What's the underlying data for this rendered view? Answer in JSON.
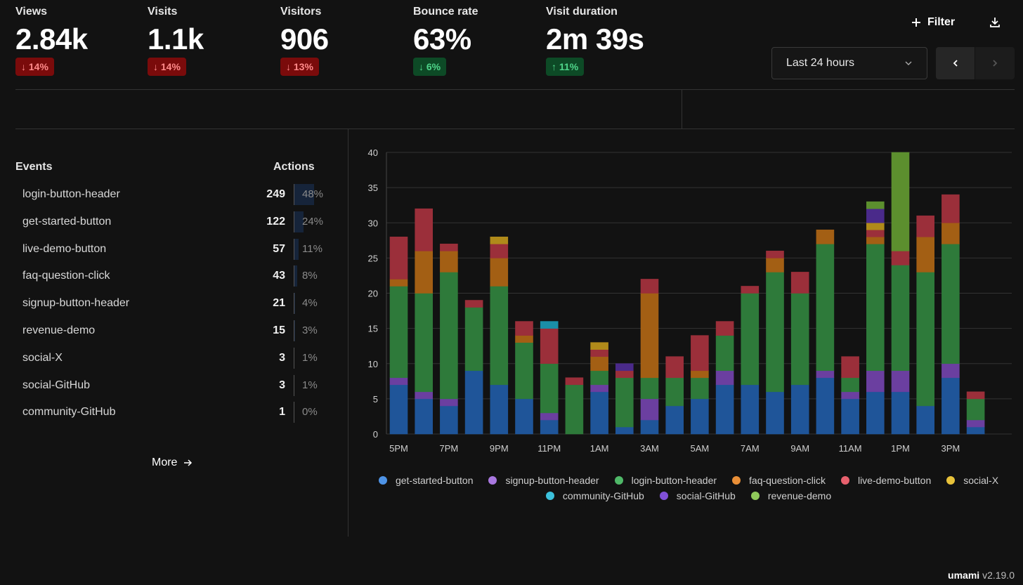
{
  "metrics": [
    {
      "label": "Views",
      "value": "2.84k",
      "change": "14%",
      "direction": "down"
    },
    {
      "label": "Visits",
      "value": "1.1k",
      "change": "14%",
      "direction": "down"
    },
    {
      "label": "Visitors",
      "value": "906",
      "change": "13%",
      "direction": "down"
    },
    {
      "label": "Bounce rate",
      "value": "63%",
      "change": "6%",
      "direction": "down-good"
    },
    {
      "label": "Visit duration",
      "value": "2m 39s",
      "change": "11%",
      "direction": "up"
    }
  ],
  "toolbar": {
    "filter_label": "Filter",
    "date_range": "Last 24 hours"
  },
  "events": {
    "header_events": "Events",
    "header_actions": "Actions",
    "rows": [
      {
        "name": "login-button-header",
        "count": "249",
        "pct": "48%",
        "share": 48
      },
      {
        "name": "get-started-button",
        "count": "122",
        "pct": "24%",
        "share": 24
      },
      {
        "name": "live-demo-button",
        "count": "57",
        "pct": "11%",
        "share": 11
      },
      {
        "name": "faq-question-click",
        "count": "43",
        "pct": "8%",
        "share": 8
      },
      {
        "name": "signup-button-header",
        "count": "21",
        "pct": "4%",
        "share": 4
      },
      {
        "name": "revenue-demo",
        "count": "15",
        "pct": "3%",
        "share": 3
      },
      {
        "name": "social-X",
        "count": "3",
        "pct": "1%",
        "share": 1
      },
      {
        "name": "social-GitHub",
        "count": "3",
        "pct": "1%",
        "share": 1
      },
      {
        "name": "community-GitHub",
        "count": "1",
        "pct": "0%",
        "share": 0
      }
    ],
    "more_label": "More"
  },
  "colors": {
    "get-started-button": "#1f5599",
    "signup-button-header": "#6b3fa0",
    "login-button-header": "#2e7a3a",
    "faq-question-click": "#a35f14",
    "live-demo-button": "#9b2f3a",
    "social-X": "#b08a1a",
    "community-GitHub": "#1a8fa8",
    "social-GitHub": "#4a2a8a",
    "revenue-demo": "#5c8f2e"
  },
  "legend_colors": {
    "get-started-button": "#4e93e6",
    "signup-button-header": "#a978e0",
    "login-button-header": "#4fb868",
    "faq-question-click": "#e98f37",
    "live-demo-button": "#e8606d",
    "social-X": "#e8c23a",
    "community-GitHub": "#3cc1dc",
    "social-GitHub": "#8150d8",
    "revenue-demo": "#8fc95a"
  },
  "chart_data": {
    "type": "bar",
    "stacked": true,
    "ylim": [
      0,
      40
    ],
    "yticks": [
      0,
      5,
      10,
      15,
      20,
      25,
      30,
      35,
      40
    ],
    "categories": [
      "5PM",
      "6PM",
      "7PM",
      "8PM",
      "9PM",
      "10PM",
      "11PM",
      "12AM",
      "1AM",
      "2AM",
      "3AM",
      "4AM",
      "5AM",
      "6AM",
      "7AM",
      "8AM",
      "9AM",
      "10AM",
      "11AM",
      "12PM",
      "1PM",
      "2PM",
      "3PM",
      "4PM"
    ],
    "tick_labels": [
      "5PM",
      "7PM",
      "9PM",
      "11PM",
      "1AM",
      "3AM",
      "5AM",
      "7AM",
      "9AM",
      "11AM",
      "1PM",
      "3PM"
    ],
    "series": [
      {
        "name": "get-started-button",
        "values": [
          7,
          5,
          4,
          9,
          7,
          5,
          2,
          0,
          6,
          1,
          2,
          4,
          5,
          7,
          7,
          6,
          7,
          8,
          5,
          6,
          6,
          4,
          8,
          1
        ]
      },
      {
        "name": "signup-button-header",
        "values": [
          1,
          1,
          1,
          0,
          0,
          0,
          1,
          0,
          1,
          0,
          3,
          0,
          0,
          2,
          0,
          0,
          0,
          1,
          1,
          3,
          3,
          0,
          2,
          1
        ]
      },
      {
        "name": "login-button-header",
        "values": [
          13,
          14,
          18,
          9,
          14,
          8,
          7,
          7,
          2,
          7,
          3,
          4,
          3,
          5,
          13,
          17,
          13,
          18,
          2,
          18,
          15,
          19,
          17,
          3
        ]
      },
      {
        "name": "faq-question-click",
        "values": [
          1,
          6,
          3,
          0,
          4,
          1,
          0,
          0,
          2,
          0,
          12,
          0,
          1,
          0,
          0,
          2,
          0,
          2,
          0,
          1,
          0,
          5,
          3,
          0
        ]
      },
      {
        "name": "live-demo-button",
        "values": [
          6,
          6,
          1,
          1,
          2,
          2,
          5,
          1,
          1,
          1,
          2,
          3,
          5,
          2,
          1,
          1,
          3,
          0,
          3,
          1,
          2,
          3,
          4,
          1
        ]
      },
      {
        "name": "social-X",
        "values": [
          0,
          0,
          0,
          0,
          1,
          0,
          0,
          0,
          1,
          0,
          0,
          0,
          0,
          0,
          0,
          0,
          0,
          0,
          0,
          1,
          0,
          0,
          0,
          0
        ]
      },
      {
        "name": "community-GitHub",
        "values": [
          0,
          0,
          0,
          0,
          0,
          0,
          1,
          0,
          0,
          0,
          0,
          0,
          0,
          0,
          0,
          0,
          0,
          0,
          0,
          0,
          0,
          0,
          0,
          0
        ]
      },
      {
        "name": "social-GitHub",
        "values": [
          0,
          0,
          0,
          0,
          0,
          0,
          0,
          0,
          0,
          1,
          0,
          0,
          0,
          0,
          0,
          0,
          0,
          0,
          0,
          2,
          0,
          0,
          0,
          0
        ]
      },
      {
        "name": "revenue-demo",
        "values": [
          0,
          0,
          0,
          0,
          0,
          0,
          0,
          0,
          0,
          0,
          0,
          0,
          0,
          0,
          0,
          0,
          0,
          0,
          0,
          1,
          14,
          0,
          0,
          0
        ]
      }
    ]
  },
  "footer": {
    "brand": "umami",
    "version": "v2.19.0"
  }
}
